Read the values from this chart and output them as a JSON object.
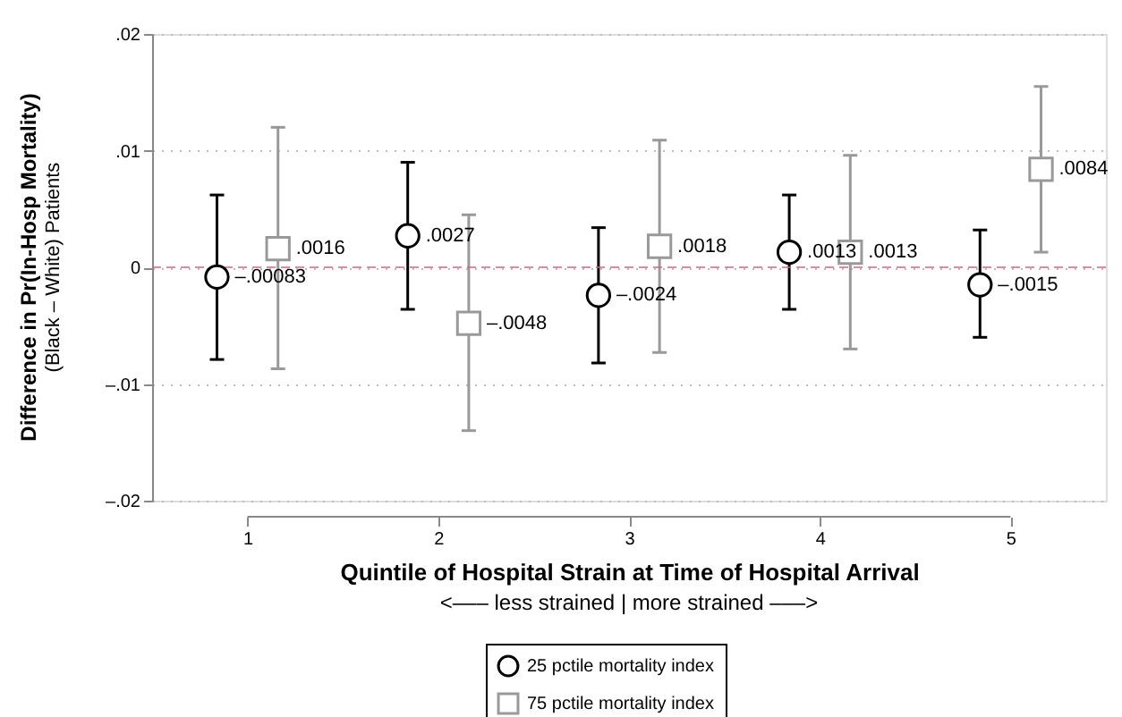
{
  "chart_data": {
    "type": "scatter",
    "xlabel": "Quintile of Hospital Strain at Time of Hospital Arrival",
    "ylabel": "Difference in Pr(In-Hosp Mortality)\n(Black – White) Patients",
    "annotations": [
      "<–––  less strained  |  more strained  –––>"
    ],
    "xlim": [
      0.5,
      5.5
    ],
    "xticks": [
      1,
      2,
      3,
      4,
      5
    ],
    "ylim": [
      -0.02,
      0.02
    ],
    "yticks": [
      {
        "value": -0.02,
        "label": "–.02"
      },
      {
        "value": -0.01,
        "label": "–.01"
      },
      {
        "value": 0,
        "label": "0"
      },
      {
        "value": 0.01,
        "label": ".01"
      },
      {
        "value": 0.02,
        "label": ".02"
      }
    ],
    "grid": "y",
    "legend": "bottom",
    "ref_lines": [
      {
        "axis": "y",
        "value": 0,
        "color": "#cc6688",
        "line_style": "dashed"
      }
    ],
    "series": [
      {
        "name": "25 pctile mortality index",
        "color": "#000000",
        "marker": "circle",
        "x": [
          0.84,
          1.84,
          2.84,
          3.84,
          4.84
        ],
        "values": [
          -0.00083,
          0.0027,
          -0.0024,
          0.0013,
          -0.0015
        ],
        "value_labels": [
          "–.00083",
          ".0027",
          "–.0024",
          ".0013",
          "–.0015"
        ],
        "errors": [
          [
            -0.0079,
            0.0062
          ],
          [
            -0.0036,
            0.009
          ],
          [
            -0.0082,
            0.0034
          ],
          [
            -0.0036,
            0.0062
          ],
          [
            -0.006,
            0.0032
          ]
        ]
      },
      {
        "name": "75 pctile mortality index",
        "color": "#999999",
        "marker": "square",
        "x": [
          1.16,
          2.16,
          3.16,
          4.16,
          5.16
        ],
        "values": [
          0.0016,
          -0.0048,
          0.0018,
          0.0013,
          0.0084
        ],
        "value_labels": [
          ".0016",
          "–.0048",
          ".0018",
          ".0013",
          ".0084"
        ],
        "errors": [
          [
            -0.0087,
            0.012
          ],
          [
            -0.014,
            0.0045
          ],
          [
            -0.0073,
            0.0109
          ],
          [
            -0.007,
            0.0096
          ],
          [
            0.0013,
            0.0155
          ]
        ]
      }
    ]
  }
}
